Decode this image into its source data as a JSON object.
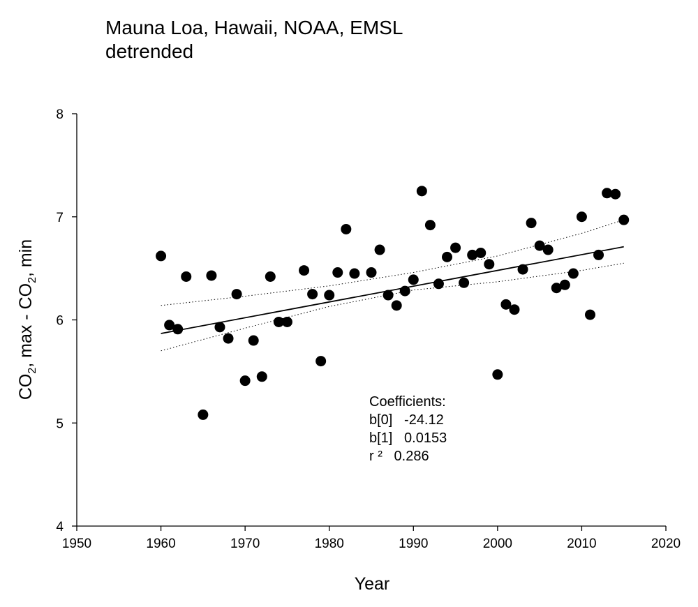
{
  "chart_data": {
    "type": "scatter",
    "title": "Mauna Loa, Hawaii, NOAA, EMSL",
    "subtitle": "detrended",
    "xlabel": "Year",
    "ylabel": {
      "part1": "CO",
      "sub1": "2",
      "part2": ", max - CO",
      "sub2": "2",
      "part3": ", min"
    },
    "xlim": [
      1950,
      2020
    ],
    "ylim": [
      4,
      8
    ],
    "xticks": [
      1950,
      1960,
      1970,
      1980,
      1990,
      2000,
      2010,
      2020
    ],
    "yticks": [
      4,
      5,
      6,
      7,
      8
    ],
    "grid": false,
    "points": [
      {
        "x": 1960,
        "y": 6.62
      },
      {
        "x": 1961,
        "y": 5.95
      },
      {
        "x": 1962,
        "y": 5.91
      },
      {
        "x": 1963,
        "y": 6.42
      },
      {
        "x": 1965,
        "y": 5.08
      },
      {
        "x": 1966,
        "y": 6.43
      },
      {
        "x": 1967,
        "y": 5.93
      },
      {
        "x": 1968,
        "y": 5.82
      },
      {
        "x": 1969,
        "y": 6.25
      },
      {
        "x": 1970,
        "y": 5.41
      },
      {
        "x": 1971,
        "y": 5.8
      },
      {
        "x": 1972,
        "y": 5.45
      },
      {
        "x": 1973,
        "y": 6.42
      },
      {
        "x": 1974,
        "y": 5.98
      },
      {
        "x": 1975,
        "y": 5.98
      },
      {
        "x": 1977,
        "y": 6.48
      },
      {
        "x": 1978,
        "y": 6.25
      },
      {
        "x": 1979,
        "y": 5.6
      },
      {
        "x": 1980,
        "y": 6.24
      },
      {
        "x": 1981,
        "y": 6.46
      },
      {
        "x": 1982,
        "y": 6.88
      },
      {
        "x": 1983,
        "y": 6.45
      },
      {
        "x": 1985,
        "y": 6.46
      },
      {
        "x": 1986,
        "y": 6.68
      },
      {
        "x": 1987,
        "y": 6.24
      },
      {
        "x": 1988,
        "y": 6.14
      },
      {
        "x": 1989,
        "y": 6.28
      },
      {
        "x": 1990,
        "y": 6.39
      },
      {
        "x": 1991,
        "y": 7.25
      },
      {
        "x": 1992,
        "y": 6.92
      },
      {
        "x": 1993,
        "y": 6.35
      },
      {
        "x": 1994,
        "y": 6.61
      },
      {
        "x": 1995,
        "y": 6.7
      },
      {
        "x": 1996,
        "y": 6.36
      },
      {
        "x": 1997,
        "y": 6.63
      },
      {
        "x": 1998,
        "y": 6.65
      },
      {
        "x": 1999,
        "y": 6.54
      },
      {
        "x": 2000,
        "y": 5.47
      },
      {
        "x": 2001,
        "y": 6.15
      },
      {
        "x": 2002,
        "y": 6.1
      },
      {
        "x": 2003,
        "y": 6.49
      },
      {
        "x": 2004,
        "y": 6.94
      },
      {
        "x": 2005,
        "y": 6.72
      },
      {
        "x": 2006,
        "y": 6.68
      },
      {
        "x": 2007,
        "y": 6.31
      },
      {
        "x": 2008,
        "y": 6.34
      },
      {
        "x": 2009,
        "y": 6.45
      },
      {
        "x": 2010,
        "y": 7.0
      },
      {
        "x": 2011,
        "y": 6.05
      },
      {
        "x": 2012,
        "y": 6.63
      },
      {
        "x": 2013,
        "y": 7.23
      },
      {
        "x": 2014,
        "y": 7.22
      },
      {
        "x": 2015,
        "y": 6.97
      }
    ],
    "regression": {
      "x_range": [
        1960,
        2015
      ],
      "b0": -24.12,
      "b1": 0.0153
    },
    "confidence_band": {
      "upper": [
        [
          1960,
          6.14
        ],
        [
          1970,
          6.23
        ],
        [
          1980,
          6.33
        ],
        [
          1990,
          6.46
        ],
        [
          2000,
          6.62
        ],
        [
          2010,
          6.84
        ],
        [
          2015,
          6.97
        ]
      ],
      "lower": [
        [
          1960,
          5.7
        ],
        [
          1970,
          5.92
        ],
        [
          1980,
          6.13
        ],
        [
          1990,
          6.29
        ],
        [
          2000,
          6.37
        ],
        [
          2010,
          6.48
        ],
        [
          2015,
          6.55
        ]
      ]
    },
    "annotation": {
      "heading": "Coefficients:",
      "lines": [
        "b[0]   -24.12",
        "b[1]   0.0153",
        "r ²   0.286"
      ]
    },
    "colors": {
      "marker": "#000000",
      "line": "#000000",
      "band": "#000000"
    }
  }
}
